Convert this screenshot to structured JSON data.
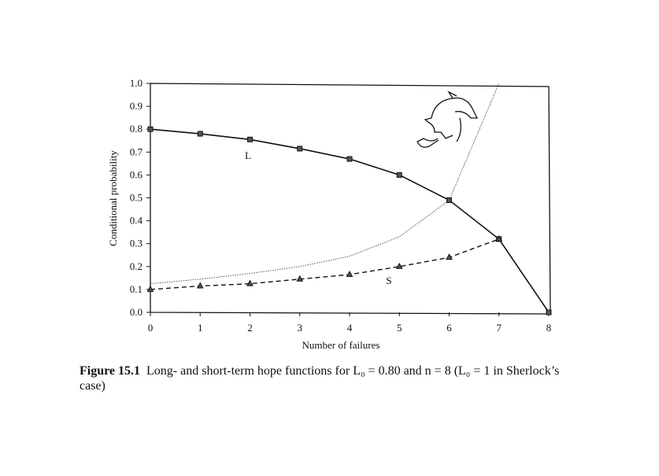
{
  "chart_data": {
    "type": "line",
    "x": [
      0,
      1,
      2,
      3,
      4,
      5,
      6,
      7,
      8
    ],
    "series": [
      {
        "name": "L",
        "color": "#111111",
        "marker": "square",
        "dash": "solid",
        "width": 1.6,
        "values": [
          0.8,
          0.78,
          0.755,
          0.715,
          0.67,
          0.6,
          0.49,
          0.32,
          0.0
        ]
      },
      {
        "name": "S",
        "color": "#111111",
        "marker": "triangle",
        "dash": "dashed",
        "width": 1.4,
        "values": [
          0.1,
          0.115,
          0.125,
          0.145,
          0.165,
          0.2,
          0.24,
          0.32,
          null
        ]
      },
      {
        "color": "#444444",
        "marker": "none",
        "dash": "dotted",
        "width": 0.9,
        "values": [
          0.125,
          0.145,
          0.17,
          0.2,
          0.245,
          0.33,
          0.49,
          1.0,
          null
        ]
      }
    ],
    "xlabel": "Number of failures",
    "ylabel": "Conditional probability",
    "xlim": [
      0,
      8
    ],
    "ylim": [
      0,
      1
    ],
    "xticks": [
      0,
      1,
      2,
      3,
      4,
      5,
      6,
      7,
      8
    ],
    "yticks": [
      {
        "value": 0,
        "label": "0.0"
      },
      0.1,
      0.2,
      0.3,
      0.4,
      0.5,
      0.6,
      0.7,
      0.8,
      0.9,
      {
        "value": 1,
        "label": "1.0"
      }
    ],
    "grid": false,
    "caption_label": "Figure 15.1",
    "caption": "Long- and short-term hope functions for L₀ = 0.80 and n = 8 (L₀ = 1 in Sherlock’s case)"
  }
}
